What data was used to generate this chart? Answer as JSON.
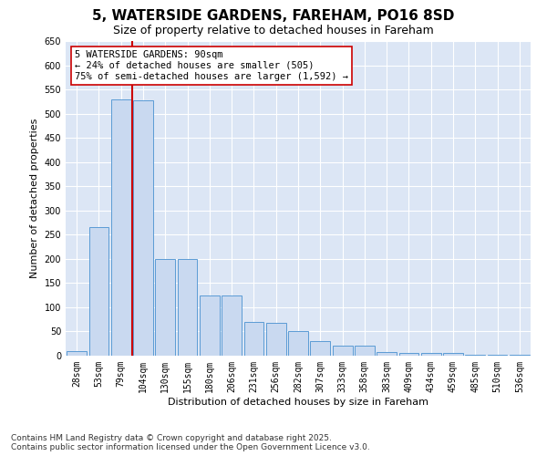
{
  "title1": "5, WATERSIDE GARDENS, FAREHAM, PO16 8SD",
  "title2": "Size of property relative to detached houses in Fareham",
  "xlabel": "Distribution of detached houses by size in Fareham",
  "ylabel": "Number of detached properties",
  "categories": [
    "28sqm",
    "53sqm",
    "79sqm",
    "104sqm",
    "130sqm",
    "155sqm",
    "180sqm",
    "206sqm",
    "231sqm",
    "256sqm",
    "282sqm",
    "307sqm",
    "333sqm",
    "358sqm",
    "383sqm",
    "409sqm",
    "434sqm",
    "459sqm",
    "485sqm",
    "510sqm",
    "536sqm"
  ],
  "values": [
    10,
    265,
    530,
    528,
    200,
    200,
    125,
    125,
    70,
    68,
    50,
    30,
    20,
    20,
    8,
    5,
    5,
    5,
    2,
    2,
    2
  ],
  "bar_color": "#c9d9f0",
  "bar_edge_color": "#5b9bd5",
  "red_line_index": 2,
  "red_line_color": "#cc0000",
  "annotation_text": "5 WATERSIDE GARDENS: 90sqm\n← 24% of detached houses are smaller (505)\n75% of semi-detached houses are larger (1,592) →",
  "annotation_box_color": "#ffffff",
  "annotation_box_edge": "#cc0000",
  "ylim": [
    0,
    650
  ],
  "background_color": "#dce6f5",
  "footer_text": "Contains HM Land Registry data © Crown copyright and database right 2025.\nContains public sector information licensed under the Open Government Licence v3.0.",
  "title_fontsize": 11,
  "subtitle_fontsize": 9,
  "axis_label_fontsize": 8,
  "tick_fontsize": 7,
  "annotation_fontsize": 7.5,
  "footer_fontsize": 6.5
}
